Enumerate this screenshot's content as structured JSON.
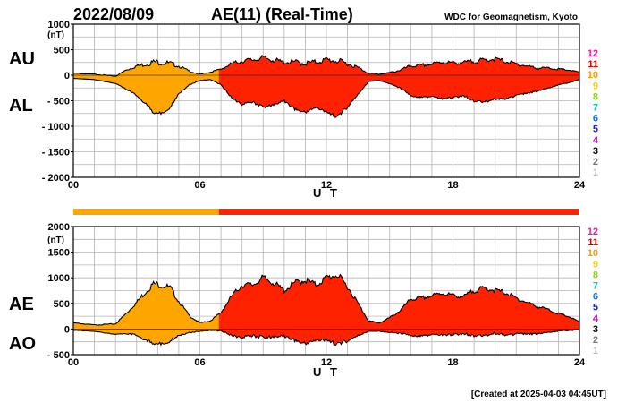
{
  "header": {
    "date": "2022/08/09",
    "title": "AE(11) (Real-Time)",
    "source": "WDC for Geomagnetism, Kyoto"
  },
  "footer": {
    "created": "[Created at 2025-04-03 04:45UT]"
  },
  "activity_levels": {
    "labels": [
      "12",
      "11",
      "10",
      "9",
      "8",
      "7",
      "6",
      "5",
      "4",
      "3",
      "2",
      "1"
    ],
    "colors": [
      "#ff1493",
      "#dd0000",
      "#ff9900",
      "#f0d000",
      "#88dd00",
      "#00cccc",
      "#1070ff",
      "#2020cc",
      "#cc00cc",
      "#000000",
      "#777777",
      "#bbbbbb"
    ]
  },
  "activity_bar": {
    "segments": [
      {
        "start": 0,
        "end": 6.9,
        "level": "10",
        "color": "#ffa500"
      },
      {
        "start": 6.9,
        "end": 24,
        "level": "11",
        "color": "#ff2200"
      }
    ]
  },
  "chart_data": [
    {
      "type": "area",
      "series": [
        {
          "name": "AU"
        },
        {
          "name": "AL"
        }
      ],
      "xlabel": "U T",
      "unit_label": "(nT)",
      "xlim": [
        0,
        24
      ],
      "ylim": [
        -2000,
        1000
      ],
      "xticks": [
        "00",
        "06",
        "12",
        "18",
        "24"
      ],
      "yticks": [
        "1000",
        "500",
        "0",
        "- 500",
        "- 1000",
        "- 1500",
        "- 2000"
      ],
      "ytick_values": [
        1000,
        500,
        0,
        -500,
        -1000,
        -1500,
        -2000
      ],
      "grid": true,
      "fill_colors": {
        "before_6.9": "#ffa500",
        "after_6.9": "#ff2200"
      },
      "x": [
        0,
        1,
        2,
        2.5,
        3,
        3.5,
        3.8,
        4.2,
        4.6,
        5,
        5.5,
        6,
        6.5,
        7,
        7.5,
        8,
        8.5,
        9,
        9.5,
        10,
        10.5,
        11,
        11.5,
        12,
        12.5,
        13,
        13.5,
        14,
        14.5,
        15,
        15.5,
        16,
        16.5,
        17,
        17.5,
        18,
        18.5,
        19,
        19.5,
        20,
        20.5,
        21,
        21.5,
        22,
        22.5,
        23,
        23.5,
        24
      ],
      "upper": [
        40,
        20,
        -20,
        100,
        180,
        220,
        260,
        250,
        230,
        180,
        80,
        20,
        60,
        120,
        220,
        280,
        300,
        340,
        300,
        250,
        260,
        230,
        260,
        300,
        280,
        230,
        150,
        40,
        20,
        50,
        100,
        180,
        190,
        220,
        260,
        240,
        250,
        270,
        300,
        320,
        270,
        220,
        180,
        140,
        140,
        120,
        100,
        60
      ],
      "lower": [
        -60,
        -80,
        -160,
        -260,
        -380,
        -560,
        -700,
        -720,
        -600,
        -340,
        -180,
        -100,
        -80,
        -180,
        -420,
        -550,
        -500,
        -600,
        -550,
        -480,
        -640,
        -700,
        -600,
        -700,
        -780,
        -600,
        -360,
        -120,
        -100,
        -160,
        -240,
        -380,
        -420,
        -400,
        -440,
        -420,
        -380,
        -480,
        -500,
        -440,
        -440,
        -380,
        -340,
        -300,
        -240,
        -180,
        -140,
        -80
      ]
    },
    {
      "type": "area",
      "series": [
        {
          "name": "AE"
        },
        {
          "name": "AO"
        }
      ],
      "xlabel": "U T",
      "unit_label": "(nT)",
      "xlim": [
        0,
        24
      ],
      "ylim": [
        -500,
        2000
      ],
      "xticks": [
        "00",
        "06",
        "12",
        "18",
        "24"
      ],
      "yticks": [
        "2000",
        "1500",
        "1000",
        "500",
        "0",
        "- 500"
      ],
      "ytick_values": [
        2000,
        1500,
        1000,
        500,
        0,
        -500
      ],
      "grid": true,
      "fill_colors": {
        "before_6.9": "#ffa500",
        "after_6.9": "#ff2200"
      },
      "x": [
        0,
        1,
        2,
        2.5,
        3,
        3.5,
        3.8,
        4.2,
        4.6,
        5,
        5.5,
        6,
        6.5,
        7,
        7.5,
        8,
        8.5,
        9,
        9.5,
        10,
        10.5,
        11,
        11.5,
        12,
        12.5,
        13,
        13.5,
        14,
        14.5,
        15,
        15.5,
        16,
        16.5,
        17,
        17.5,
        18,
        18.5,
        19,
        19.5,
        20,
        20.5,
        21,
        21.5,
        22,
        22.5,
        23,
        23.5,
        24
      ],
      "upper": [
        120,
        80,
        100,
        300,
        520,
        760,
        880,
        860,
        800,
        540,
        260,
        120,
        160,
        320,
        640,
        860,
        860,
        1000,
        900,
        750,
        900,
        960,
        860,
        1000,
        1060,
        830,
        500,
        160,
        120,
        220,
        360,
        580,
        600,
        650,
        700,
        660,
        630,
        750,
        800,
        760,
        710,
        600,
        520,
        440,
        380,
        300,
        240,
        140
      ],
      "lower": [
        -20,
        -40,
        -100,
        -80,
        -100,
        -200,
        -240,
        -260,
        -200,
        -100,
        -60,
        -40,
        -20,
        -30,
        -100,
        -140,
        -100,
        -130,
        -120,
        -110,
        -190,
        -250,
        -180,
        -190,
        -250,
        -200,
        -110,
        -40,
        -40,
        -60,
        -70,
        -100,
        -120,
        -90,
        -90,
        -90,
        -70,
        -100,
        -100,
        -60,
        -90,
        -80,
        -80,
        -80,
        -50,
        -30,
        -20,
        -10
      ]
    }
  ]
}
